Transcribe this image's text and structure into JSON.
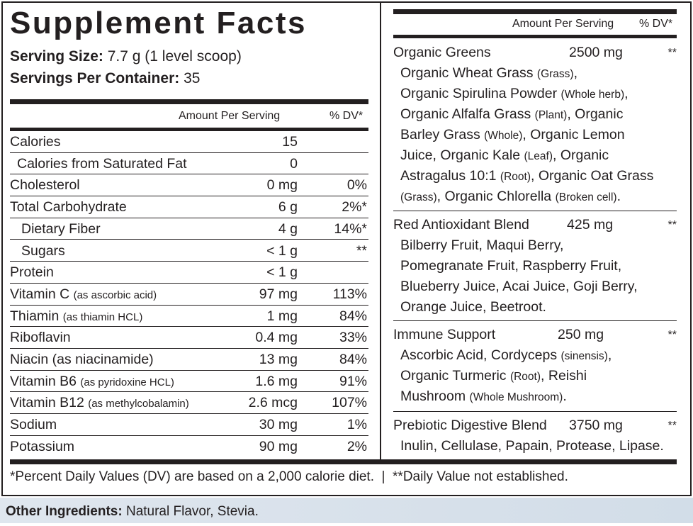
{
  "title": "Supplement Facts",
  "serving_size_label": "Serving Size:",
  "serving_size": "7.7 g (1 level scoop)",
  "servings_label": "Servings Per Container:",
  "servings": "35",
  "amount_header": "Amount Per Serving",
  "dv_header": "% DV*",
  "rows": [
    {
      "name": "Calories",
      "note": "",
      "amount": "15",
      "dv": "",
      "indent": 0
    },
    {
      "name": "Calories from Saturated Fat",
      "note": "",
      "amount": "0",
      "dv": "",
      "indent": 1
    },
    {
      "name": "Cholesterol",
      "note": "",
      "amount": "0 mg",
      "dv": "0%",
      "indent": 0
    },
    {
      "name": "Total Carbohydrate",
      "note": "",
      "amount": "6 g",
      "dv": "2%*",
      "indent": 0
    },
    {
      "name": "Dietary Fiber",
      "note": "",
      "amount": "4 g",
      "dv": "14%*",
      "indent": 2
    },
    {
      "name": "Sugars",
      "note": "",
      "amount": "< 1 g",
      "dv": "**",
      "indent": 2
    },
    {
      "name": "Protein",
      "note": "",
      "amount": "< 1 g",
      "dv": "",
      "indent": 0
    },
    {
      "name": "Vitamin C",
      "note": "(as ascorbic acid)",
      "amount": "97 mg",
      "dv": "113%",
      "indent": 0
    },
    {
      "name": "Thiamin",
      "note": "(as thiamin HCL)",
      "amount": "1 mg",
      "dv": "84%",
      "indent": 0
    },
    {
      "name": "Riboflavin",
      "note": "",
      "amount": "0.4 mg",
      "dv": "33%",
      "indent": 0
    },
    {
      "name": "Niacin (as niacinamide)",
      "note": "",
      "amount": "13 mg",
      "dv": "84%",
      "indent": 0
    },
    {
      "name": "Vitamin B6",
      "note": "(as pyridoxine HCL)",
      "amount": "1.6 mg",
      "dv": "91%",
      "indent": 0
    },
    {
      "name": "Vitamin B12",
      "note": "(as methylcobalamin)",
      "amount": "2.6 mcg",
      "dv": "107%",
      "indent": 0
    },
    {
      "name": "Sodium",
      "note": "",
      "amount": "30 mg",
      "dv": "1%",
      "indent": 0
    },
    {
      "name": "Potassium",
      "note": "",
      "amount": "90 mg",
      "dv": "2%",
      "indent": 0
    }
  ],
  "blends": [
    {
      "name": "Organic Greens",
      "amount": "2500 mg",
      "dv": "**",
      "lines": [
        [
          [
            "Organic Wheat Grass ",
            0
          ],
          [
            "(Grass)",
            1
          ],
          [
            ",",
            0
          ]
        ],
        [
          [
            "Organic Spirulina Powder ",
            0
          ],
          [
            "(Whole herb)",
            1
          ],
          [
            ",",
            0
          ]
        ],
        [
          [
            "Organic Alfalfa Grass ",
            0
          ],
          [
            "(Plant)",
            1
          ],
          [
            ", Organic",
            0
          ]
        ],
        [
          [
            "Barley Grass ",
            0
          ],
          [
            "(Whole)",
            1
          ],
          [
            ", Organic Lemon",
            0
          ]
        ],
        [
          [
            "Juice, Organic Kale ",
            0
          ],
          [
            "(Leaf)",
            1
          ],
          [
            ", Organic",
            0
          ]
        ],
        [
          [
            "Astragalus 10:1 ",
            0
          ],
          [
            "(Root)",
            1
          ],
          [
            ", Organic Oat Grass",
            0
          ]
        ],
        [
          [
            "(Grass)",
            1
          ],
          [
            ", Organic Chlorella ",
            0
          ],
          [
            "(Broken cell)",
            1
          ],
          [
            ".",
            0
          ]
        ]
      ]
    },
    {
      "name": "Red Antioxidant Blend",
      "amount": "425 mg",
      "dv": "**",
      "lines": [
        [
          [
            "Bilberry Fruit, Maqui Berry,",
            0
          ]
        ],
        [
          [
            "Pomegranate Fruit, Raspberry Fruit,",
            0
          ]
        ],
        [
          [
            "Blueberry Juice, Acai Juice, Goji Berry,",
            0
          ]
        ],
        [
          [
            "Orange Juice, Beetroot.",
            0
          ]
        ]
      ]
    },
    {
      "name": "Immune Support",
      "amount": "250 mg",
      "dv": "**",
      "lines": [
        [
          [
            "Ascorbic Acid, Cordyceps ",
            0
          ],
          [
            "(sinensis)",
            1
          ],
          [
            ",",
            0
          ]
        ],
        [
          [
            "Organic Turmeric ",
            0
          ],
          [
            "(Root)",
            1
          ],
          [
            ", Reishi",
            0
          ]
        ],
        [
          [
            "Mushroom ",
            0
          ],
          [
            "(Whole Mushroom)",
            1
          ],
          [
            ".",
            0
          ]
        ]
      ]
    },
    {
      "name": "Prebiotic Digestive Blend",
      "amount": "3750 mg",
      "dv": "**",
      "lines": [
        [
          [
            "Inulin, Cellulase, Papain, Protease, Lipase.",
            0
          ]
        ]
      ]
    }
  ],
  "footnote": "*Percent Daily Values (DV) are based on a 2,000 calorie diet.  |  **Daily Value not established.",
  "other_label": "Other Ingredients:",
  "other_value": " Natural Flavor, Stevia."
}
